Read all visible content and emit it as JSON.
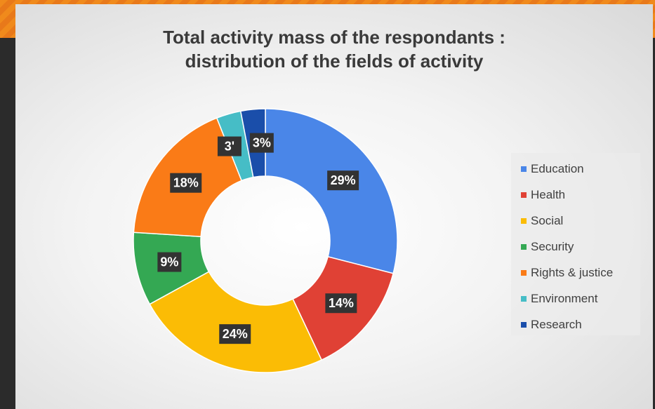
{
  "chart_data": {
    "type": "pie",
    "donut": true,
    "title_line1": "Total activity mass of the respondants :",
    "title_line2": "distribution of the fields of activity",
    "legend_position": "right",
    "slices": [
      {
        "name": "Education",
        "value": 29,
        "label": "29%",
        "color": "#4a86e8"
      },
      {
        "name": "Health",
        "value": 14,
        "label": "14%",
        "color": "#e04135"
      },
      {
        "name": "Social",
        "value": 24,
        "label": "24%",
        "color": "#fbbc05"
      },
      {
        "name": "Security",
        "value": 9,
        "label": "9%",
        "color": "#34a853"
      },
      {
        "name": "Rights & justice",
        "value": 18,
        "label": "18%",
        "color": "#fa7b17"
      },
      {
        "name": "Environment",
        "value": 3,
        "label": "3'",
        "color": "#46bdc6"
      },
      {
        "name": "Research",
        "value": 3,
        "label": "3%",
        "color": "#1a4eaa"
      }
    ]
  }
}
